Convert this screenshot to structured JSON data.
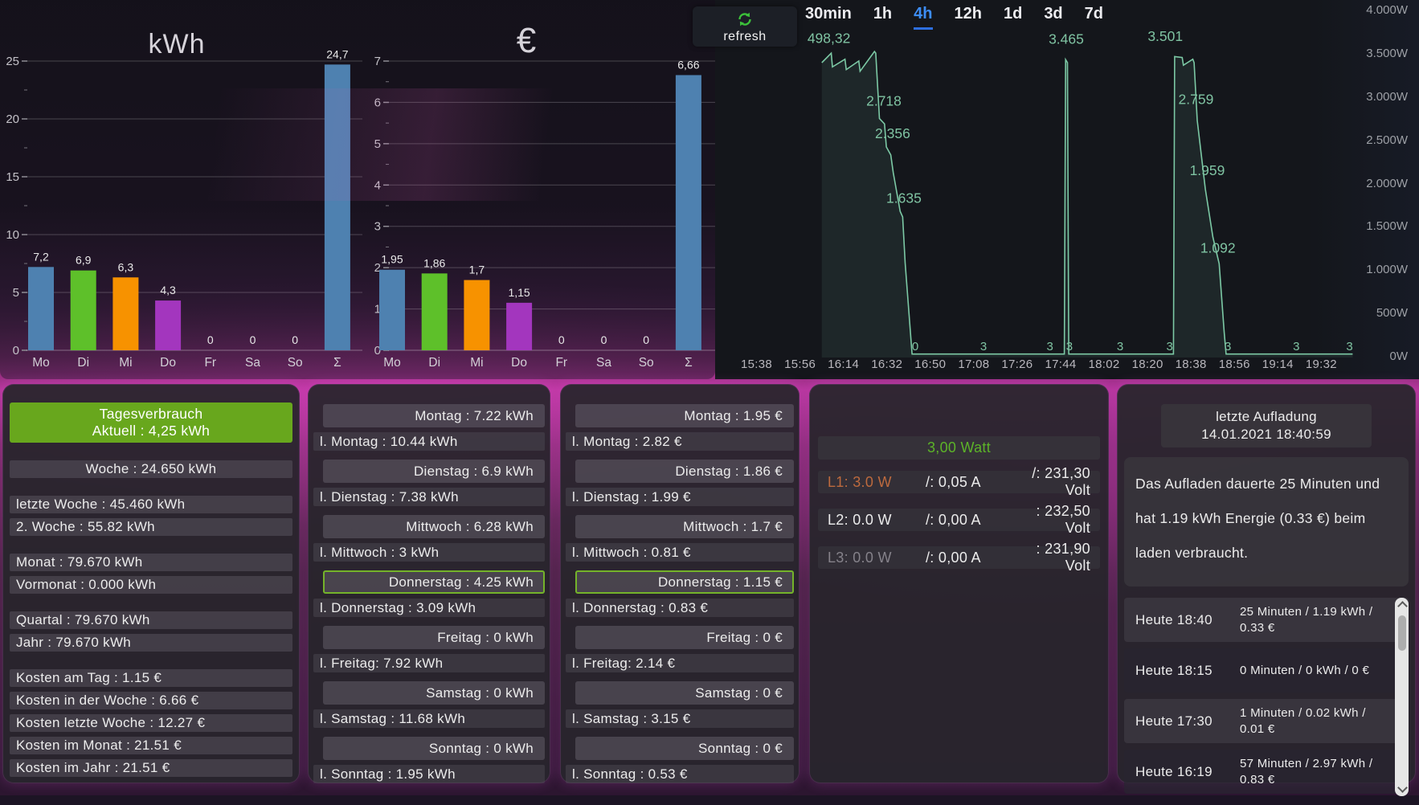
{
  "refresh": {
    "label": "refresh",
    "icon_color": "#3cc23a"
  },
  "chart_data": [
    {
      "id": "kwh",
      "type": "bar",
      "title": "kWh",
      "categories": [
        "Mo",
        "Di",
        "Mi",
        "Do",
        "Fr",
        "Sa",
        "So",
        "Σ"
      ],
      "values": [
        7.2,
        6.9,
        6.3,
        4.3,
        0,
        0,
        0,
        24.7
      ],
      "value_labels": [
        "7,2",
        "6,9",
        "6,3",
        "4,3",
        "0",
        "0",
        "0",
        "24,7"
      ],
      "bar_colors": [
        "#4e81b0",
        "#5ec02a",
        "#f79200",
        "#a336be",
        "#4e81b0",
        "#4e81b0",
        "#4e81b0",
        "#4e81b0"
      ],
      "xlabel": "",
      "ylabel": "",
      "ylim": [
        0,
        25
      ],
      "yticks": [
        0,
        5,
        10,
        15,
        20,
        25
      ],
      "grid": true
    },
    {
      "id": "euro",
      "type": "bar",
      "title": "€",
      "categories": [
        "Mo",
        "Di",
        "Mi",
        "Do",
        "Fr",
        "Sa",
        "So",
        "Σ"
      ],
      "values": [
        1.95,
        1.86,
        1.7,
        1.15,
        0,
        0,
        0,
        6.66
      ],
      "value_labels": [
        "1,95",
        "1,86",
        "1,7",
        "1,15",
        "0",
        "0",
        "0",
        "6,66"
      ],
      "bar_colors": [
        "#4e81b0",
        "#5ec02a",
        "#f79200",
        "#a336be",
        "#4e81b0",
        "#4e81b0",
        "#4e81b0",
        "#4e81b0"
      ],
      "xlabel": "",
      "ylabel": "",
      "ylim": [
        0,
        7
      ],
      "yticks": [
        0,
        1,
        2,
        3,
        4,
        5,
        6,
        7
      ],
      "grid": true
    },
    {
      "id": "power",
      "type": "line",
      "unit": "W",
      "line_color": "#7cc9a5",
      "fill_color": "rgba(124,201,165,0.10)",
      "annotation_color": "#7fc3a2",
      "time_ranges": [
        "30min",
        "1h",
        "4h",
        "12h",
        "1d",
        "3d",
        "7d"
      ],
      "active_range": "4h",
      "active_color": "#3d8df5",
      "ylim_watts": [
        0,
        4000
      ],
      "y_ticks": [
        "4.000W",
        "3.500W",
        "3.000W",
        "2.500W",
        "2.000W",
        "1.500W",
        "1.000W",
        "500W",
        "0W"
      ],
      "x_ticks": [
        "15:38",
        "15:56",
        "16:14",
        "16:32",
        "16:50",
        "17:08",
        "17:26",
        "17:44",
        "18:02",
        "18:20",
        "18:38",
        "18:56",
        "19:14",
        "19:32"
      ],
      "series_xpct_watts": [
        [
          15.1,
          3430
        ],
        [
          16.6,
          3540
        ],
        [
          16.8,
          3380
        ],
        [
          18.8,
          3470
        ],
        [
          19.0,
          3350
        ],
        [
          21.0,
          3450
        ],
        [
          21.2,
          3330
        ],
        [
          23.5,
          3560
        ],
        [
          23.7,
          3540
        ],
        [
          24.3,
          2780
        ],
        [
          25.1,
          2718
        ],
        [
          25.4,
          2450
        ],
        [
          26.1,
          2356
        ],
        [
          26.5,
          2150
        ],
        [
          27.6,
          1700
        ],
        [
          28.0,
          1635
        ],
        [
          28.4,
          1100
        ],
        [
          29.5,
          40
        ],
        [
          53.8,
          40
        ],
        [
          54.0,
          3465
        ],
        [
          54.3,
          3430
        ],
        [
          54.5,
          40
        ],
        [
          71.2,
          40
        ],
        [
          71.4,
          3501
        ],
        [
          72.6,
          3490
        ],
        [
          72.8,
          3400
        ],
        [
          74.3,
          3470
        ],
        [
          74.5,
          3430
        ],
        [
          75.0,
          2759
        ],
        [
          76.3,
          1959
        ],
        [
          77.5,
          1400
        ],
        [
          78.5,
          1092
        ],
        [
          79.3,
          300
        ],
        [
          79.6,
          40
        ],
        [
          99.8,
          40
        ]
      ],
      "annotations": [
        {
          "text": "498,32",
          "x": 12.8,
          "watts": 3660,
          "anchor": "start"
        },
        {
          "text": "2.718",
          "x": 25.0,
          "watts": 2930,
          "anchor": "middle"
        },
        {
          "text": "2.356",
          "x": 26.4,
          "watts": 2550,
          "anchor": "middle"
        },
        {
          "text": "1.635",
          "x": 28.2,
          "watts": 1800,
          "anchor": "middle"
        },
        {
          "text": "3.465",
          "x": 54.1,
          "watts": 3650,
          "anchor": "middle"
        },
        {
          "text": "3.501",
          "x": 69.9,
          "watts": 3680,
          "anchor": "middle"
        },
        {
          "text": "2.759",
          "x": 74.8,
          "watts": 2950,
          "anchor": "middle"
        },
        {
          "text": "1.959",
          "x": 76.6,
          "watts": 2120,
          "anchor": "middle"
        },
        {
          "text": "1.092",
          "x": 78.3,
          "watts": 1220,
          "anchor": "middle"
        }
      ],
      "baseline_labels": [
        {
          "text": "0",
          "x": 30.0
        },
        {
          "text": "3",
          "x": 40.9
        },
        {
          "text": "3",
          "x": 51.5
        },
        {
          "text": "3",
          "x": 54.6
        },
        {
          "text": "3",
          "x": 62.7
        },
        {
          "text": "3",
          "x": 70.6
        },
        {
          "text": "3",
          "x": 79.9
        },
        {
          "text": "3",
          "x": 90.8
        },
        {
          "text": "3",
          "x": 99.3
        }
      ]
    }
  ],
  "panels": {
    "daily": {
      "header": [
        "Tagesverbrauch",
        "Aktuell : 4,25 kWh"
      ],
      "header_color": "#68a71d",
      "rows": [
        {
          "text": "Woche : 24.650 kWh",
          "center": true,
          "section": true
        },
        {
          "text": "letzte Woche : 45.460 kWh",
          "section": true
        },
        {
          "text": "2. Woche : 55.82 kWh"
        },
        {
          "text": "Monat : 79.670 kWh",
          "section": true
        },
        {
          "text": "Vormonat : 0.000 kWh"
        },
        {
          "text": "Quartal : 79.670 kWh",
          "section": true
        },
        {
          "text": "Jahr : 79.670 kWh"
        },
        {
          "text": "Kosten am Tag : 1.15 €",
          "section": true
        },
        {
          "text": "Kosten in der Woche : 6.66 €"
        },
        {
          "text": "Kosten letzte Woche : 12.27 €"
        },
        {
          "text": "Kosten im Monat : 21.51 €"
        },
        {
          "text": "Kosten im Jahr : 21.51 €"
        }
      ]
    },
    "kwh_days": {
      "highlight_color": "#74b32a",
      "pairs": [
        {
          "day": "Montag : 7.22 kWh",
          "last": "l. Montag : 10.44 kWh",
          "highlight": false
        },
        {
          "day": "Dienstag : 6.9 kWh",
          "last": "l. Dienstag : 7.38 kWh",
          "highlight": false
        },
        {
          "day": "Mittwoch : 6.28 kWh",
          "last": "l. Mittwoch : 3 kWh",
          "highlight": false
        },
        {
          "day": "Donnerstag : 4.25 kWh",
          "last": "l. Donnerstag : 3.09 kWh",
          "highlight": true
        },
        {
          "day": "Freitag : 0 kWh",
          "last": "l. Freitag: 7.92 kWh",
          "highlight": false
        },
        {
          "day": "Samstag : 0 kWh",
          "last": "l. Samstag : 11.68 kWh",
          "highlight": false
        },
        {
          "day": "Sonntag : 0 kWh",
          "last": "l. Sonntag : 1.95 kWh",
          "highlight": false
        }
      ]
    },
    "euro_days": {
      "highlight_color": "#74b32a",
      "pairs": [
        {
          "day": "Montag : 1.95 €",
          "last": "l. Montag : 2.82 €",
          "highlight": false
        },
        {
          "day": "Dienstag : 1.86 €",
          "last": "l. Dienstag : 1.99 €",
          "highlight": false
        },
        {
          "day": "Mittwoch : 1.7 €",
          "last": "l. Mittwoch : 0.81 €",
          "highlight": false
        },
        {
          "day": "Donnerstag : 1.15 €",
          "last": "l. Donnerstag : 0.83 €",
          "highlight": true
        },
        {
          "day": "Freitag : 0 €",
          "last": "l. Freitag: 2.14 €",
          "highlight": false
        },
        {
          "day": "Samstag : 0 €",
          "last": "l. Samstag : 3.15 €",
          "highlight": false
        },
        {
          "day": "Sonntag : 0 €",
          "last": "l. Sonntag : 0.53 €",
          "highlight": false
        }
      ]
    },
    "power": {
      "total": "3,00 Watt",
      "total_color": "#5cb328",
      "phases": [
        {
          "label": "L1: 3.0 W",
          "label_color": "#bd6a3e",
          "amps": "/: 0,05 A",
          "volts": "/: 231,30 Volt"
        },
        {
          "label": "L2: 0.0 W",
          "label_color": "#ececec",
          "amps": "/: 0,00 A",
          "volts": ": 232,50 Volt"
        },
        {
          "label": "L3: 0.0 W",
          "label_color": "#85828a",
          "amps": "/: 0,00 A",
          "volts": ": 231,90 Volt"
        }
      ]
    },
    "charge": {
      "header": [
        "letzte Aufladung",
        "14.01.2021 18:40:59"
      ],
      "description": "Das Aufladen dauerte 25 Minuten und hat 1.19 kWh Energie (0.33 €) beim laden verbraucht.",
      "history": [
        {
          "time": "Heute 18:40",
          "detail": "25 Minuten / 1.19 kWh / 0.33 €"
        },
        {
          "time": "Heute 18:15",
          "detail": "0 Minuten / 0 kWh / 0 €"
        },
        {
          "time": "Heute 17:30",
          "detail": "1 Minuten / 0.02 kWh / 0.01 €"
        },
        {
          "time": "Heute 16:19",
          "detail": "57 Minuten / 2.97 kWh / 0.83 €"
        }
      ]
    }
  }
}
